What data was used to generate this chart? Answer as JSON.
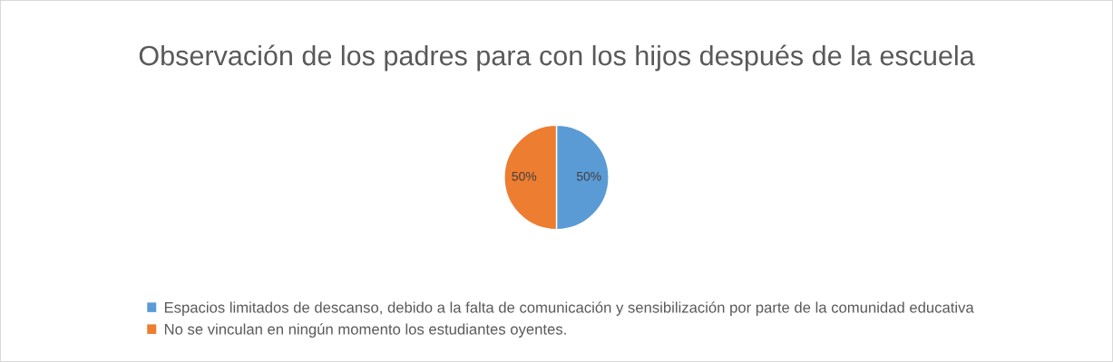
{
  "chart_data": {
    "type": "pie",
    "title": "Observación de los padres para con los hijos después de la escuela",
    "categories": [
      "Espacios limitados de descanso, debido a la falta de comunicación y sensibilización por parte de la comunidad educativa",
      "No se vinculan en ningún momento los estudiantes oyentes."
    ],
    "values": [
      50,
      50
    ],
    "colors": [
      "#5b9bd5",
      "#ed7d31"
    ],
    "value_labels": [
      "50%",
      "50%"
    ],
    "legend": "bottom"
  }
}
